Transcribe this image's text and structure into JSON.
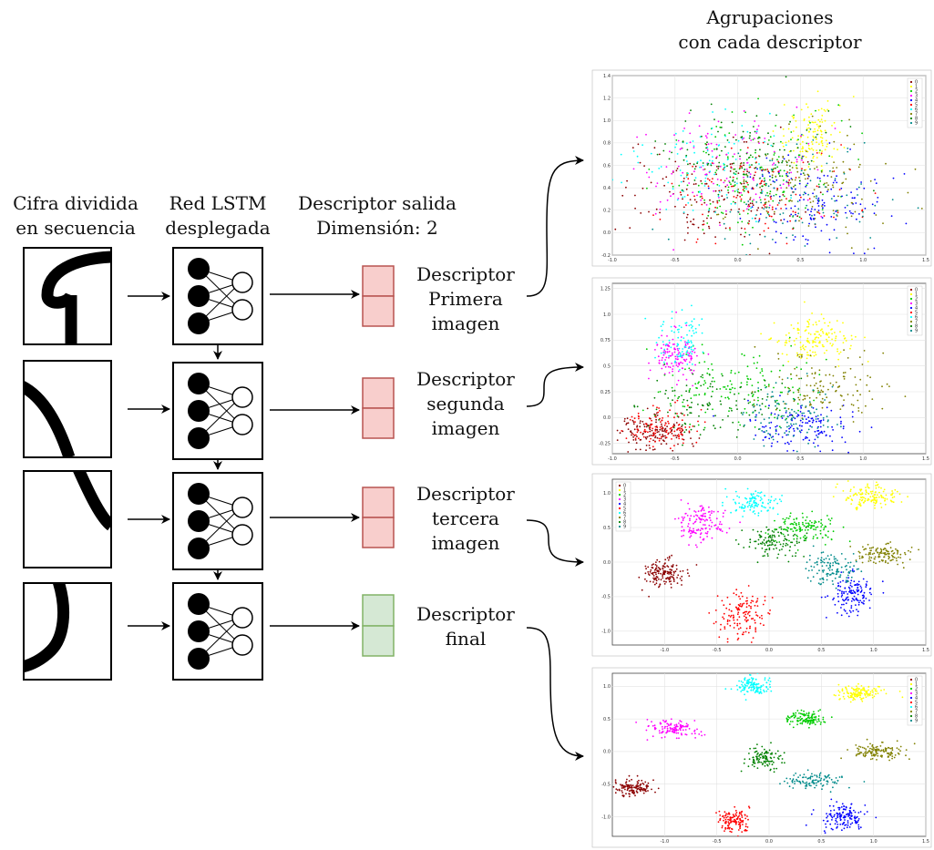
{
  "labels": {
    "input_col": [
      "Cifra dividida",
      "en secuencia"
    ],
    "lstm_col": [
      "Red LSTM",
      "desplegada"
    ],
    "desc_col": [
      "Descriptor salida",
      "Dimensión: 2"
    ],
    "plots_col": [
      "Agrupaciones",
      "con cada descriptor"
    ]
  },
  "descriptor_labels": [
    [
      "Descriptor",
      "Primera",
      "imagen"
    ],
    [
      "Descriptor",
      "segunda",
      "imagen"
    ],
    [
      "Descriptor",
      "tercera",
      "imagen"
    ],
    [
      "Descriptor",
      "final"
    ]
  ],
  "colors": {
    "descriptor_fill": "#f8cecc",
    "descriptor_stroke": "#b85450",
    "final_fill": "#d5e8d4",
    "final_stroke": "#82b366"
  },
  "legend_labels": [
    "0",
    "1",
    "2",
    "3",
    "4",
    "5",
    "6",
    "7",
    "8",
    "9"
  ],
  "chart_data": [
    {
      "type": "scatter",
      "xlim": [
        -1.0,
        1.5
      ],
      "ylim": [
        -0.2,
        1.4
      ],
      "x_ticks": [
        -1.0,
        -0.5,
        0.0,
        0.5,
        1.0,
        1.5
      ],
      "y_ticks": [
        -0.2,
        0.0,
        0.2,
        0.4,
        0.6,
        0.8,
        1.0,
        1.2,
        1.4
      ],
      "grid": true,
      "legend": "top-right",
      "series": [
        {
          "name": "0",
          "color": "#8b0000",
          "center": [
            -0.25,
            0.35
          ],
          "spread": [
            0.35,
            0.22
          ],
          "n": 160
        },
        {
          "name": "1",
          "color": "#ffff00",
          "center": [
            0.6,
            0.85
          ],
          "spread": [
            0.12,
            0.15
          ],
          "n": 130
        },
        {
          "name": "2",
          "color": "#00cc00",
          "center": [
            0.1,
            0.55
          ],
          "spread": [
            0.35,
            0.25
          ],
          "n": 160
        },
        {
          "name": "3",
          "color": "#ff00ff",
          "center": [
            -0.1,
            0.6
          ],
          "spread": [
            0.35,
            0.25
          ],
          "n": 120
        },
        {
          "name": "4",
          "color": "#0000ff",
          "center": [
            0.6,
            0.25
          ],
          "spread": [
            0.3,
            0.2
          ],
          "n": 140
        },
        {
          "name": "5",
          "color": "#ff0000",
          "center": [
            0.15,
            0.35
          ],
          "spread": [
            0.35,
            0.22
          ],
          "n": 120
        },
        {
          "name": "6",
          "color": "#00ffff",
          "center": [
            -0.2,
            0.55
          ],
          "spread": [
            0.35,
            0.22
          ],
          "n": 110
        },
        {
          "name": "7",
          "color": "#808000",
          "center": [
            0.5,
            0.45
          ],
          "spread": [
            0.35,
            0.25
          ],
          "n": 120
        },
        {
          "name": "8",
          "color": "#008000",
          "center": [
            0.05,
            0.7
          ],
          "spread": [
            0.35,
            0.2
          ],
          "n": 110
        },
        {
          "name": "9",
          "color": "#008b8b",
          "center": [
            0.45,
            0.3
          ],
          "spread": [
            0.3,
            0.22
          ],
          "n": 110
        }
      ]
    },
    {
      "type": "scatter",
      "xlim": [
        -1.0,
        1.5
      ],
      "ylim": [
        -0.35,
        1.3
      ],
      "x_ticks": [
        -1.0,
        -0.5,
        0.0,
        0.5,
        1.0,
        1.5
      ],
      "y_ticks": [
        -0.25,
        0.0,
        0.25,
        0.5,
        0.75,
        1.0,
        1.25
      ],
      "grid": true,
      "legend": "top-right",
      "series": [
        {
          "name": "0",
          "color": "#8b0000",
          "center": [
            -0.7,
            -0.15
          ],
          "spread": [
            0.15,
            0.08
          ],
          "n": 150
        },
        {
          "name": "1",
          "color": "#ffff00",
          "center": [
            0.6,
            0.75
          ],
          "spread": [
            0.15,
            0.1
          ],
          "n": 150
        },
        {
          "name": "2",
          "color": "#00cc00",
          "center": [
            0.0,
            0.3
          ],
          "spread": [
            0.35,
            0.18
          ],
          "n": 160
        },
        {
          "name": "3",
          "color": "#ff00ff",
          "center": [
            -0.5,
            0.6
          ],
          "spread": [
            0.1,
            0.12
          ],
          "n": 130
        },
        {
          "name": "4",
          "color": "#0000ff",
          "center": [
            0.5,
            -0.1
          ],
          "spread": [
            0.2,
            0.1
          ],
          "n": 140
        },
        {
          "name": "5",
          "color": "#ff0000",
          "center": [
            -0.6,
            -0.1
          ],
          "spread": [
            0.15,
            0.1
          ],
          "n": 110
        },
        {
          "name": "6",
          "color": "#00ffff",
          "center": [
            -0.45,
            0.75
          ],
          "spread": [
            0.1,
            0.15
          ],
          "n": 90
        },
        {
          "name": "7",
          "color": "#808000",
          "center": [
            0.7,
            0.3
          ],
          "spread": [
            0.25,
            0.15
          ],
          "n": 130
        },
        {
          "name": "8",
          "color": "#008000",
          "center": [
            -0.2,
            0.1
          ],
          "spread": [
            0.3,
            0.15
          ],
          "n": 110
        },
        {
          "name": "9",
          "color": "#008b8b",
          "center": [
            0.4,
            0.05
          ],
          "spread": [
            0.2,
            0.15
          ],
          "n": 110
        }
      ]
    },
    {
      "type": "scatter",
      "xlim": [
        -1.5,
        1.5
      ],
      "ylim": [
        -1.2,
        1.2
      ],
      "x_ticks": [
        -1.0,
        -0.5,
        0.0,
        0.5,
        1.0,
        1.5
      ],
      "y_ticks": [
        -1.0,
        -0.5,
        0.0,
        0.5,
        1.0
      ],
      "grid": true,
      "legend": "top-left",
      "series": [
        {
          "name": "0",
          "color": "#8b0000",
          "center": [
            -1.0,
            -0.15
          ],
          "spread": [
            0.1,
            0.1
          ],
          "n": 150
        },
        {
          "name": "1",
          "color": "#ffff00",
          "center": [
            0.95,
            0.95
          ],
          "spread": [
            0.12,
            0.08
          ],
          "n": 140
        },
        {
          "name": "2",
          "color": "#00cc00",
          "center": [
            0.35,
            0.5
          ],
          "spread": [
            0.15,
            0.1
          ],
          "n": 130
        },
        {
          "name": "3",
          "color": "#ff00ff",
          "center": [
            -0.65,
            0.55
          ],
          "spread": [
            0.12,
            0.15
          ],
          "n": 140
        },
        {
          "name": "4",
          "color": "#0000ff",
          "center": [
            0.8,
            -0.45
          ],
          "spread": [
            0.1,
            0.15
          ],
          "n": 140
        },
        {
          "name": "5",
          "color": "#ff0000",
          "center": [
            -0.25,
            -0.75
          ],
          "spread": [
            0.12,
            0.18
          ],
          "n": 140
        },
        {
          "name": "6",
          "color": "#00ffff",
          "center": [
            -0.15,
            0.85
          ],
          "spread": [
            0.12,
            0.08
          ],
          "n": 110
        },
        {
          "name": "7",
          "color": "#808000",
          "center": [
            1.1,
            0.1
          ],
          "spread": [
            0.12,
            0.08
          ],
          "n": 120
        },
        {
          "name": "8",
          "color": "#008000",
          "center": [
            0.05,
            0.3
          ],
          "spread": [
            0.15,
            0.1
          ],
          "n": 120
        },
        {
          "name": "9",
          "color": "#008b8b",
          "center": [
            0.6,
            -0.1
          ],
          "spread": [
            0.12,
            0.12
          ],
          "n": 120
        }
      ]
    },
    {
      "type": "scatter",
      "xlim": [
        -1.5,
        1.5
      ],
      "ylim": [
        -1.3,
        1.2
      ],
      "x_ticks": [
        -1.0,
        -0.5,
        0.0,
        0.5,
        1.0,
        1.5
      ],
      "y_ticks": [
        -1.0,
        -0.5,
        0.0,
        0.5,
        1.0
      ],
      "grid": true,
      "legend": "top-right",
      "series": [
        {
          "name": "0",
          "color": "#8b0000",
          "center": [
            -1.3,
            -0.55
          ],
          "spread": [
            0.1,
            0.06
          ],
          "n": 130
        },
        {
          "name": "1",
          "color": "#ffff00",
          "center": [
            0.85,
            0.9
          ],
          "spread": [
            0.12,
            0.06
          ],
          "n": 140
        },
        {
          "name": "2",
          "color": "#00cc00",
          "center": [
            0.35,
            0.5
          ],
          "spread": [
            0.1,
            0.06
          ],
          "n": 120
        },
        {
          "name": "3",
          "color": "#ff00ff",
          "center": [
            -0.9,
            0.35
          ],
          "spread": [
            0.12,
            0.06
          ],
          "n": 130
        },
        {
          "name": "4",
          "color": "#0000ff",
          "center": [
            0.7,
            -1.0
          ],
          "spread": [
            0.1,
            0.1
          ],
          "n": 140
        },
        {
          "name": "5",
          "color": "#ff0000",
          "center": [
            -0.35,
            -1.05
          ],
          "spread": [
            0.08,
            0.1
          ],
          "n": 130
        },
        {
          "name": "6",
          "color": "#00ffff",
          "center": [
            -0.15,
            1.0
          ],
          "spread": [
            0.1,
            0.08
          ],
          "n": 120
        },
        {
          "name": "7",
          "color": "#808000",
          "center": [
            1.05,
            0.0
          ],
          "spread": [
            0.12,
            0.06
          ],
          "n": 130
        },
        {
          "name": "8",
          "color": "#008000",
          "center": [
            -0.05,
            -0.1
          ],
          "spread": [
            0.08,
            0.08
          ],
          "n": 110
        },
        {
          "name": "9",
          "color": "#008b8b",
          "center": [
            0.45,
            -0.45
          ],
          "spread": [
            0.15,
            0.06
          ],
          "n": 110
        }
      ]
    }
  ]
}
